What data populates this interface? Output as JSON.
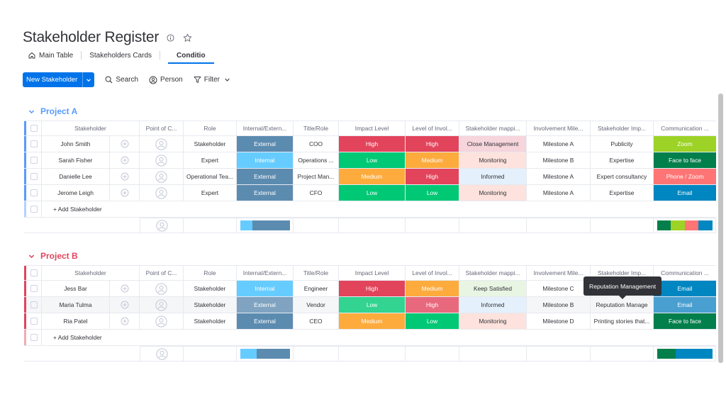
{
  "page": {
    "title": "Stakeholder Register"
  },
  "tabs": [
    {
      "label": "Main Table"
    },
    {
      "label": "Stakeholders Cards"
    },
    {
      "label": "Conditio"
    }
  ],
  "toolbar": {
    "new_label": "New Stakeholder",
    "search_label": "Search",
    "person_label": "Person",
    "filter_label": "Filter"
  },
  "columns": [
    "Stakeholder",
    "Point of C...",
    "Role",
    "Internal/Extern...",
    "Title/Role",
    "Impact Level",
    "Level of Invol...",
    "Stakeholder mappi...",
    "Involvement Mile...",
    "Stakeholder Imp...",
    "Communication ..."
  ],
  "colors": {
    "project_a": "#579bfc",
    "project_b": "#e2445c",
    "high": "#e2445c",
    "medium": "#fdab3d",
    "low": "#00c875",
    "external": "#5c8bb0",
    "internal": "#66ccff"
  },
  "groups": [
    {
      "name": "Project A",
      "add_label": "+ Add Stakeholder",
      "rows": [
        {
          "name": "John Smith",
          "role": "Stakeholder",
          "ie": "External",
          "title": "COO",
          "impact": "High",
          "level": "High",
          "mapping": "Close Management",
          "milestone": "Milestone A",
          "simp": "Publicity",
          "comm": "Zoom"
        },
        {
          "name": "Sarah Fisher",
          "role": "Expert",
          "ie": "Internal",
          "title": "Operations ...",
          "impact": "Low",
          "level": "Medium",
          "mapping": "Monitoring",
          "milestone": "Milestone B",
          "simp": "Expertise",
          "comm": "Face to face"
        },
        {
          "name": "Danielle Lee",
          "role": "Operational Tea...",
          "ie": "External",
          "title": "Project Man...",
          "impact": "Medium",
          "level": "High",
          "mapping": "Informed",
          "milestone": "Milestone A",
          "simp": "Expert consultancy",
          "comm": "Phone / Zoom"
        },
        {
          "name": "Jerome Leigh",
          "role": "Expert",
          "ie": "External",
          "title": "CFO",
          "impact": "Low",
          "level": "Low",
          "mapping": "Monitoring",
          "milestone": "Milestone A",
          "simp": "Expertise",
          "comm": "Email"
        }
      ]
    },
    {
      "name": "Project B",
      "add_label": "+ Add Stakeholder",
      "rows": [
        {
          "name": "Jess Bar",
          "role": "Stakeholder",
          "ie": "Internal",
          "title": "Engineer",
          "impact": "High",
          "level": "Medium",
          "mapping": "Keep Satisfied",
          "milestone": "Milestone C",
          "simp": "",
          "comm": "Email"
        },
        {
          "name": "Maria Tulma",
          "role": "Stakeholder",
          "ie": "External",
          "title": "Vendor",
          "impact": "Low",
          "level": "High",
          "mapping": "Informed",
          "milestone": "Milestone B",
          "simp": "Reputation Manage",
          "comm": "Email"
        },
        {
          "name": "Ria Patel",
          "role": "Stakeholder",
          "ie": "External",
          "title": "CEO",
          "impact": "Medium",
          "level": "Low",
          "mapping": "Monitoring",
          "milestone": "Milestone D",
          "simp": "Printing stories that...",
          "comm": "Face to face"
        }
      ]
    }
  ],
  "tooltip": {
    "text": "Reputation Management"
  }
}
